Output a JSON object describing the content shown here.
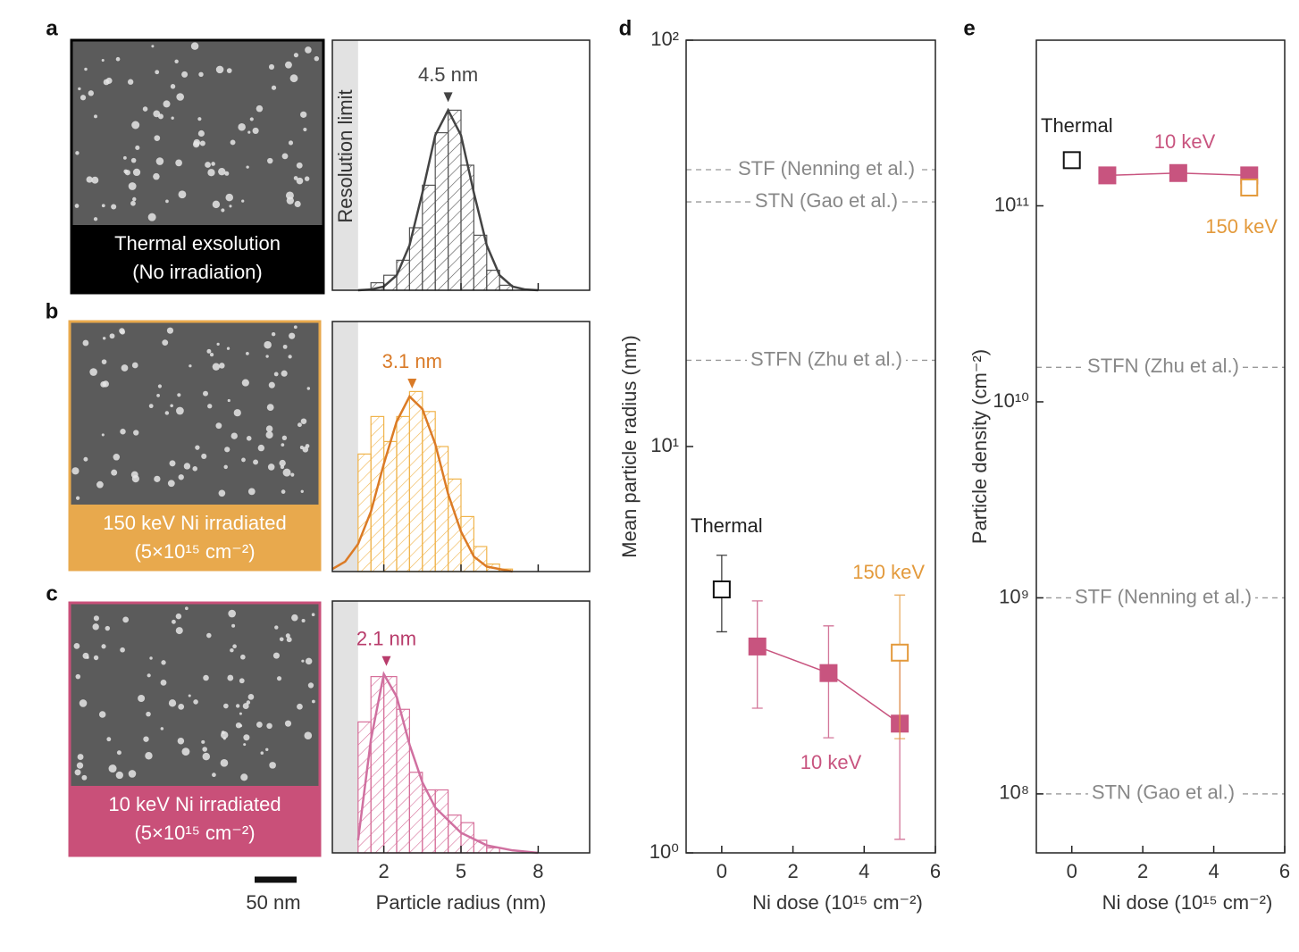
{
  "chart_data": [
    {
      "type": "histogram",
      "label": "a",
      "image_caption": [
        "Thermal  exsolution",
        "(No irradiation)"
      ],
      "image_color": "#000000",
      "resolution_label": "Resolution limit",
      "resolution_limit": 1,
      "bins": [
        1.5,
        2,
        2.5,
        3,
        3.5,
        4,
        4.5,
        5,
        5.5,
        6,
        6.5,
        7
      ],
      "counts": [
        0.03,
        0.06,
        0.12,
        0.25,
        0.42,
        0.63,
        0.72,
        0.5,
        0.22,
        0.08,
        0.02
      ],
      "color": "#555555",
      "fit": {
        "x": [
          1,
          1.5,
          2,
          2.5,
          3,
          3.5,
          4,
          4.5,
          5,
          5.5,
          6,
          6.5,
          7,
          7.5,
          8
        ],
        "values": [
          0,
          0.003,
          0.015,
          0.06,
          0.18,
          0.39,
          0.62,
          0.72,
          0.62,
          0.39,
          0.18,
          0.06,
          0.015,
          0.003,
          0
        ],
        "color": "#444444"
      },
      "peak": {
        "value": 4.5,
        "label": "4.5 nm",
        "color": "#444444"
      },
      "xlim": [
        0,
        10
      ],
      "ylim": [
        0,
        1
      ],
      "xticks": [
        2,
        5,
        8
      ]
    },
    {
      "type": "histogram",
      "label": "b",
      "image_caption": [
        "150 keV Ni irradiated",
        "(5×10¹⁵ cm⁻²)"
      ],
      "image_color": "#e8a94d",
      "resolution_limit": 1,
      "bins": [
        1,
        1.5,
        2,
        2.5,
        3,
        3.5,
        4,
        4.5,
        5,
        5.5,
        6,
        6.5,
        7
      ],
      "counts": [
        0.47,
        0.62,
        0.52,
        0.62,
        0.72,
        0.64,
        0.5,
        0.37,
        0.22,
        0.1,
        0.03,
        0.01
      ],
      "color": "#f0b44c",
      "fit": {
        "x": [
          0,
          0.5,
          1,
          1.5,
          2,
          2.5,
          3,
          3.5,
          4,
          4.5,
          5,
          5.5,
          6,
          7
        ],
        "values": [
          0.01,
          0.04,
          0.11,
          0.24,
          0.43,
          0.6,
          0.7,
          0.65,
          0.51,
          0.31,
          0.16,
          0.06,
          0.02,
          0
        ],
        "color": "#db7b26"
      },
      "peak": {
        "value": 3.1,
        "label": "3.1 nm",
        "color": "#d97a27"
      },
      "xlim": [
        0,
        10
      ],
      "ylim": [
        0,
        1
      ],
      "xticks": [
        2,
        5,
        8
      ]
    },
    {
      "type": "histogram",
      "label": "c",
      "image_caption": [
        "10 keV Ni irradiated",
        "(5×10¹⁵ cm⁻²)"
      ],
      "image_color": "#c95079",
      "resolution_limit": 1,
      "scale_bar": "50 nm",
      "xlabel": "Particle radius (nm)",
      "bins": [
        1,
        1.5,
        2,
        2.5,
        3,
        3.5,
        4,
        4.5,
        5,
        5.5,
        6,
        6.5
      ],
      "counts": [
        0.52,
        0.7,
        0.7,
        0.57,
        0.32,
        0.25,
        0.25,
        0.15,
        0.12,
        0.05,
        0.02
      ],
      "color": "#d66f9a",
      "fit": {
        "x": [
          1,
          1.5,
          2,
          2.5,
          3,
          3.5,
          4,
          5,
          6,
          7,
          8
        ],
        "values": [
          0.05,
          0.45,
          0.71,
          0.62,
          0.43,
          0.28,
          0.18,
          0.08,
          0.03,
          0.01,
          0
        ],
        "color": "#d070a0"
      },
      "peak": {
        "value": 2.1,
        "label": "2.1 nm",
        "color": "#b83c6b"
      },
      "xlim": [
        0,
        10
      ],
      "ylim": [
        0,
        1
      ],
      "xticks": [
        2,
        5,
        8
      ]
    },
    {
      "type": "scatter",
      "label": "d",
      "log_y": true,
      "xlabel": "Ni dose (10¹⁵ cm⁻²)",
      "ylabel": "Mean particle radius (nm)",
      "xlim": [
        -1,
        6
      ],
      "ylim": [
        1,
        100
      ],
      "xticks": [
        0,
        2,
        4,
        6
      ],
      "yticks": [
        {
          "value": 1,
          "label": "10⁰"
        },
        {
          "value": 10,
          "label": "10¹"
        },
        {
          "value": 100,
          "label": "10²"
        }
      ],
      "series": [
        {
          "name": "Thermal",
          "color": "#111111",
          "filled": false,
          "connected": false,
          "x": [
            0
          ],
          "values": [
            4.45
          ],
          "errors": [
            0.95
          ]
        },
        {
          "name": "10 keV",
          "color": "#c8547f",
          "filled": true,
          "connected": true,
          "x": [
            1,
            3,
            5
          ],
          "values": [
            3.22,
            2.77,
            2.08
          ],
          "errors": [
            0.95,
            0.85,
            1.0
          ]
        },
        {
          "name": "150 keV",
          "color": "#e39a3c",
          "filled": false,
          "connected": false,
          "x": [
            5
          ],
          "values": [
            3.11
          ],
          "errors": [
            1.2
          ]
        }
      ],
      "references": [
        {
          "label": "STF (Nenning et al.)",
          "value": 48
        },
        {
          "label": "STN (Gao et al.)",
          "value": 40
        },
        {
          "label": "STFN (Zhu et al.)",
          "value": 16.3
        }
      ]
    },
    {
      "type": "scatter",
      "label": "e",
      "log_y": true,
      "xlabel": "Ni dose (10¹⁵ cm⁻²)",
      "ylabel": "Particle density (cm⁻²)",
      "xlim": [
        -1,
        6
      ],
      "ylim": [
        50000000,
        700000000000
      ],
      "xticks": [
        0,
        2,
        4,
        6
      ],
      "yticks": [
        {
          "value": 100000000,
          "label": "10⁸"
        },
        {
          "value": 1000000000,
          "label": "10⁹"
        },
        {
          "value": 10000000000,
          "label": "10¹⁰"
        },
        {
          "value": 100000000000,
          "label": "10¹¹"
        }
      ],
      "series": [
        {
          "name": "Thermal",
          "color": "#111111",
          "filled": false,
          "connected": false,
          "x": [
            0
          ],
          "values": [
            171000000000
          ]
        },
        {
          "name": "10 keV",
          "color": "#c8547f",
          "filled": true,
          "connected": true,
          "x": [
            1,
            3,
            5
          ],
          "values": [
            143000000000,
            147000000000,
            143000000000
          ]
        },
        {
          "name": "150 keV",
          "color": "#e39a3c",
          "filled": false,
          "connected": false,
          "x": [
            5
          ],
          "values": [
            124000000000
          ]
        }
      ],
      "references": [
        {
          "label": "STFN (Zhu et al.)",
          "value": 15000000000
        },
        {
          "label": "STF (Nenning et al.)",
          "value": 1000000000
        },
        {
          "label": "STN (Gao et al.)",
          "value": 100000000
        }
      ]
    }
  ]
}
